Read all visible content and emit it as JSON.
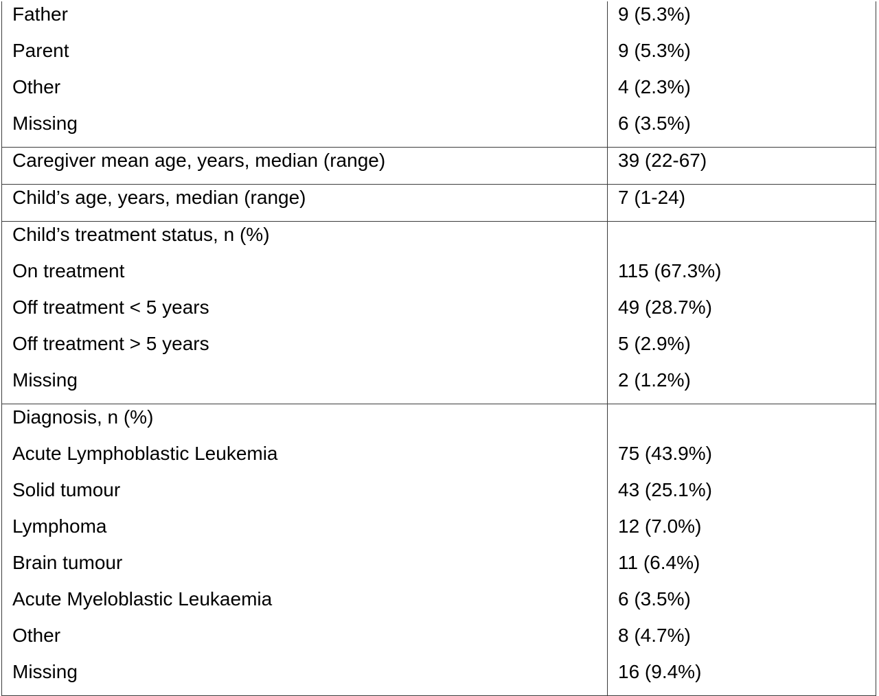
{
  "table": {
    "groups": [
      {
        "rows": [
          {
            "label": "Father",
            "value": "9 (5.3%)"
          },
          {
            "label": "Parent",
            "value": "9 (5.3%)"
          },
          {
            "label": "Other",
            "value": "4 (2.3%)"
          },
          {
            "label": "Missing",
            "value": "6 (3.5%)"
          }
        ]
      },
      {
        "rows": [
          {
            "label": "Caregiver mean age, years, median (range)",
            "value": "39 (22-67)"
          }
        ]
      },
      {
        "rows": [
          {
            "label": "Child’s age, years, median (range)",
            "value": "7 (1-24)"
          }
        ]
      },
      {
        "rows": [
          {
            "label": "Child’s treatment status, n (%)",
            "value": ""
          },
          {
            "label": "On treatment",
            "value": "115 (67.3%)"
          },
          {
            "label": "Off treatment < 5 years",
            "value": "49 (28.7%)"
          },
          {
            "label": "Off treatment > 5 years",
            "value": "5 (2.9%)"
          },
          {
            "label": "Missing",
            "value": "2 (1.2%)"
          }
        ]
      },
      {
        "rows": [
          {
            "label": "Diagnosis, n (%)",
            "value": ""
          },
          {
            "label": "Acute Lymphoblastic Leukemia",
            "value": "75 (43.9%)"
          },
          {
            "label": "Solid tumour",
            "value": "43 (25.1%)"
          },
          {
            "label": "Lymphoma",
            "value": "12 (7.0%)"
          },
          {
            "label": "Brain tumour",
            "value": "11 (6.4%)"
          },
          {
            "label": "Acute Myeloblastic Leukaemia",
            "value": "6 (3.5%)"
          },
          {
            "label": "Other",
            "value": "8 (4.7%)"
          },
          {
            "label": "Missing",
            "value": "16 (9.4%)"
          }
        ]
      }
    ]
  }
}
